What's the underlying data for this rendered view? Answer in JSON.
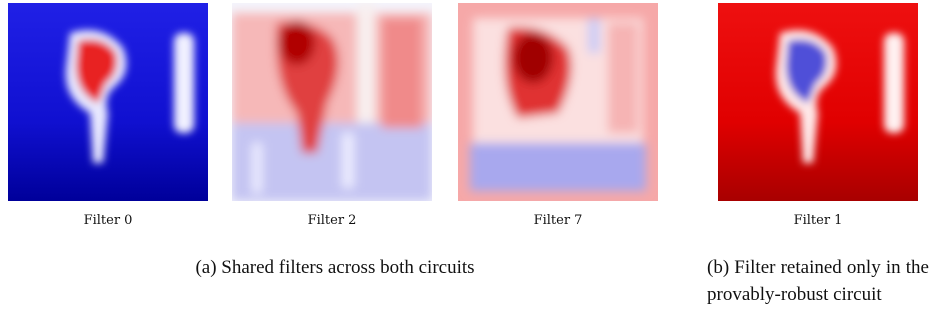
{
  "panels": [
    {
      "label": "Filter 0"
    },
    {
      "label": "Filter 2"
    },
    {
      "label": "Filter 7"
    },
    {
      "label": "Filter 1"
    }
  ],
  "captions": {
    "a": "(a) Shared filters across both circuits",
    "b": "(b) Filter retained only in the provably-robust circuit"
  }
}
